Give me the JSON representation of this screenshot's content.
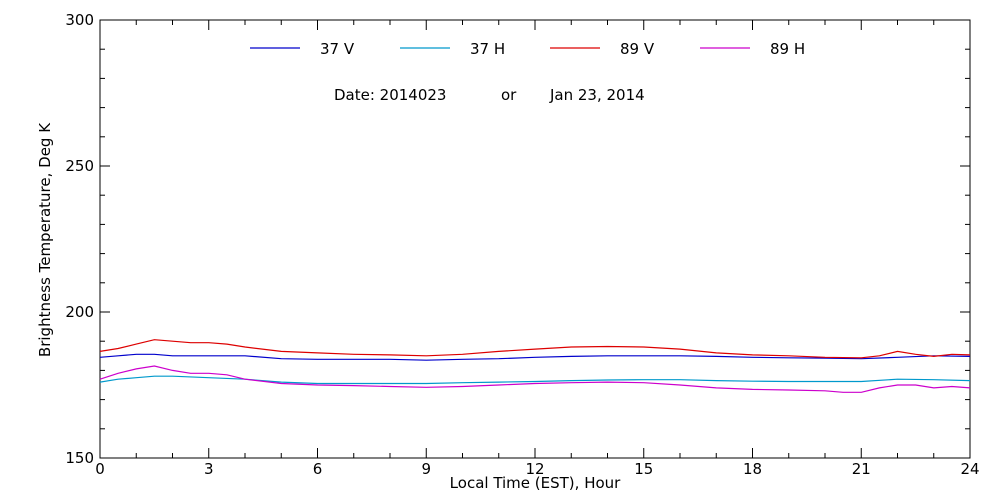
{
  "chart_data": {
    "type": "line",
    "title": "",
    "annotation": {
      "date_label": "Date: 2014023",
      "or_label": "or",
      "date_text": "Jan 23, 2014"
    },
    "xlabel": "Local Time (EST), Hour",
    "ylabel": "Brightness Temperature, Deg K",
    "xlim": [
      0,
      24
    ],
    "ylim": [
      150,
      300
    ],
    "x_ticks": [
      0,
      3,
      6,
      9,
      12,
      15,
      18,
      21,
      24
    ],
    "y_ticks": [
      150,
      200,
      250,
      300
    ],
    "grid": false,
    "legend_position": "top",
    "colors": {
      "37V": "#0000cc",
      "37H": "#0099cc",
      "89V": "#dd0000",
      "89H": "#cc00cc"
    },
    "series": [
      {
        "name": "37 V",
        "color_key": "37V",
        "x": [
          0,
          0.5,
          1,
          1.5,
          2,
          3,
          4,
          5,
          6,
          7,
          8,
          9,
          10,
          11,
          12,
          13,
          14,
          15,
          16,
          17,
          18,
          19,
          20,
          21,
          22,
          23,
          24
        ],
        "values": [
          184.5,
          185,
          185.5,
          185.5,
          185,
          185,
          185,
          184,
          183.8,
          183.8,
          183.8,
          183.5,
          183.8,
          184,
          184.5,
          184.8,
          185,
          185,
          185,
          184.8,
          184.5,
          184.3,
          184.2,
          184,
          184.5,
          185,
          184.8
        ]
      },
      {
        "name": "37 H",
        "color_key": "37H",
        "x": [
          0,
          0.5,
          1,
          1.5,
          2,
          3,
          4,
          5,
          6,
          7,
          8,
          9,
          10,
          11,
          12,
          13,
          14,
          15,
          16,
          17,
          18,
          19,
          20,
          21,
          22,
          23,
          24
        ],
        "values": [
          176,
          177,
          177.5,
          178,
          178,
          177.5,
          177,
          176,
          175.5,
          175.5,
          175.5,
          175.5,
          175.8,
          176,
          176.2,
          176.5,
          176.7,
          176.8,
          176.8,
          176.5,
          176.3,
          176.2,
          176.2,
          176.2,
          177,
          176.8,
          176.5
        ]
      },
      {
        "name": "89 V",
        "color_key": "89V",
        "x": [
          0,
          0.5,
          1,
          1.5,
          2,
          2.5,
          3,
          3.5,
          4,
          5,
          6,
          7,
          8,
          9,
          10,
          11,
          12,
          13,
          14,
          15,
          16,
          17,
          18,
          19,
          20,
          21,
          21.5,
          22,
          22.5,
          23,
          23.5,
          24
        ],
        "values": [
          186.5,
          187.5,
          189,
          190.5,
          190,
          189.5,
          189.5,
          189,
          188,
          186.5,
          186,
          185.5,
          185.3,
          185,
          185.5,
          186.5,
          187.3,
          188,
          188.2,
          188,
          187.3,
          186,
          185.3,
          185,
          184.5,
          184.3,
          185,
          186.5,
          185.5,
          184.8,
          185.5,
          185.3
        ]
      },
      {
        "name": "89 H",
        "color_key": "89H",
        "x": [
          0,
          0.5,
          1,
          1.5,
          2,
          2.5,
          3,
          3.5,
          4,
          5,
          6,
          7,
          8,
          9,
          10,
          11,
          12,
          13,
          14,
          15,
          16,
          17,
          18,
          19,
          20,
          20.5,
          21,
          21.5,
          22,
          22.5,
          23,
          23.5,
          24
        ],
        "values": [
          177,
          179,
          180.5,
          181.5,
          180,
          179,
          179,
          178.5,
          177,
          175.5,
          175,
          174.8,
          174.5,
          174.2,
          174.5,
          175,
          175.5,
          175.8,
          176,
          175.8,
          175,
          174,
          173.5,
          173.3,
          173,
          172.5,
          172.5,
          174,
          175,
          175,
          174,
          174.5,
          174
        ]
      }
    ]
  }
}
